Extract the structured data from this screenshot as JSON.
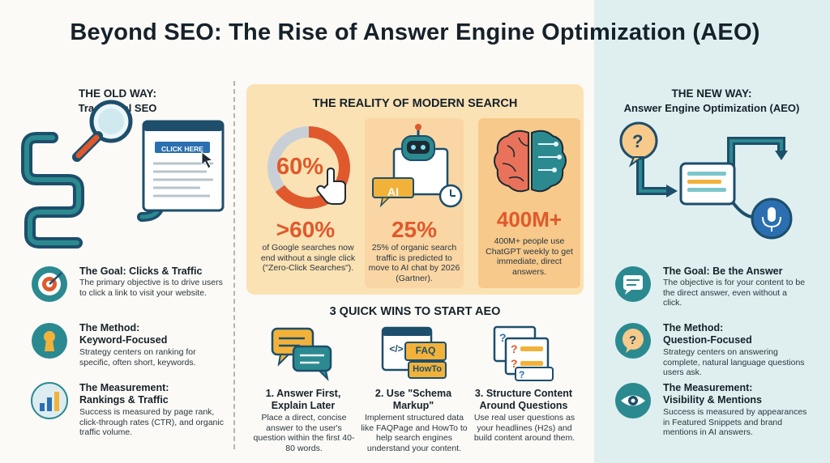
{
  "title": "Beyond SEO: The Rise of Answer Engine Optimization (AEO)",
  "colors": {
    "teal": "#2b8a90",
    "navy": "#1d4e6b",
    "orange": "#e0592c",
    "cream": "#fbe2b4",
    "right_bg": "#dfeff0"
  },
  "old_way": {
    "heading": "THE OLD WAY:",
    "subheading": "Traditional SEO",
    "button_label": "CLICK HERE",
    "items": [
      {
        "icon": "target-icon",
        "title": "The Goal: Clicks & Traffic",
        "text": "The primary objective is to drive users to click a link to visit your website."
      },
      {
        "icon": "keyhole-icon",
        "title_line1": "The Method:",
        "title_line2": "Keyword-Focused",
        "text": "Strategy centers on ranking for specific, often short, keywords."
      },
      {
        "icon": "bar-chart-icon",
        "title_line1": "The Measurement:",
        "title_line2": "Rankings & Traffic",
        "text": "Success is measured by page rank, click-through rates (CTR), and organic traffic volume."
      }
    ]
  },
  "reality": {
    "title": "THE REALITY OF MODERN SEARCH",
    "stats": [
      {
        "icon_label": "60%",
        "big": ">60%",
        "text": "of Google searches now end without a single click (\"Zero-Click Searches\")."
      },
      {
        "icon_label": "AI",
        "big": "25%",
        "text": "25% of organic search traffic is predicted to move to AI chat by 2026 (Gartner)."
      },
      {
        "big": "400M+",
        "text": "400M+ people use ChatGPT weekly to get immediate, direct answers."
      }
    ]
  },
  "quick_wins": {
    "title": "3 QUICK WINS TO START AEO",
    "items": [
      {
        "icon": "chat-bubbles-icon",
        "title_line1": "1. Answer First,",
        "title_line2": "Explain Later",
        "text": "Place a direct, concise answer to the user's question within the first 40-80 words."
      },
      {
        "icon": "code-schema-icon",
        "tag1": "FAQ",
        "tag2": "HowTo",
        "code": "</>",
        "title_line1": "2. Use \"Schema",
        "title_line2": "Markup\"",
        "text": "Implement structured data like FAQPage and HowTo to help search engines understand your content."
      },
      {
        "icon": "question-cards-icon",
        "title_line1": "3. Structure Content",
        "title_line2": "Around Questions",
        "text": "Use real user questions as your headlines (H2s) and build content around them."
      }
    ]
  },
  "new_way": {
    "heading": "THE NEW WAY:",
    "subheading": "Answer Engine Optimization (AEO)",
    "items": [
      {
        "icon": "answer-bubble-icon",
        "title": "The Goal: Be the Answer",
        "text": "The objective is for your content to be the direct answer, even without a click."
      },
      {
        "icon": "question-bubble-icon",
        "title_line1": "The Method:",
        "title_line2": "Question-Focused",
        "text": "Strategy centers on answering complete, natural language questions users ask."
      },
      {
        "icon": "eye-icon",
        "title_line1": "The Measurement:",
        "title_line2": "Visibility & Mentions",
        "text": "Success is measured by appearances in Featured Snippets and brand mentions in AI answers."
      }
    ]
  }
}
